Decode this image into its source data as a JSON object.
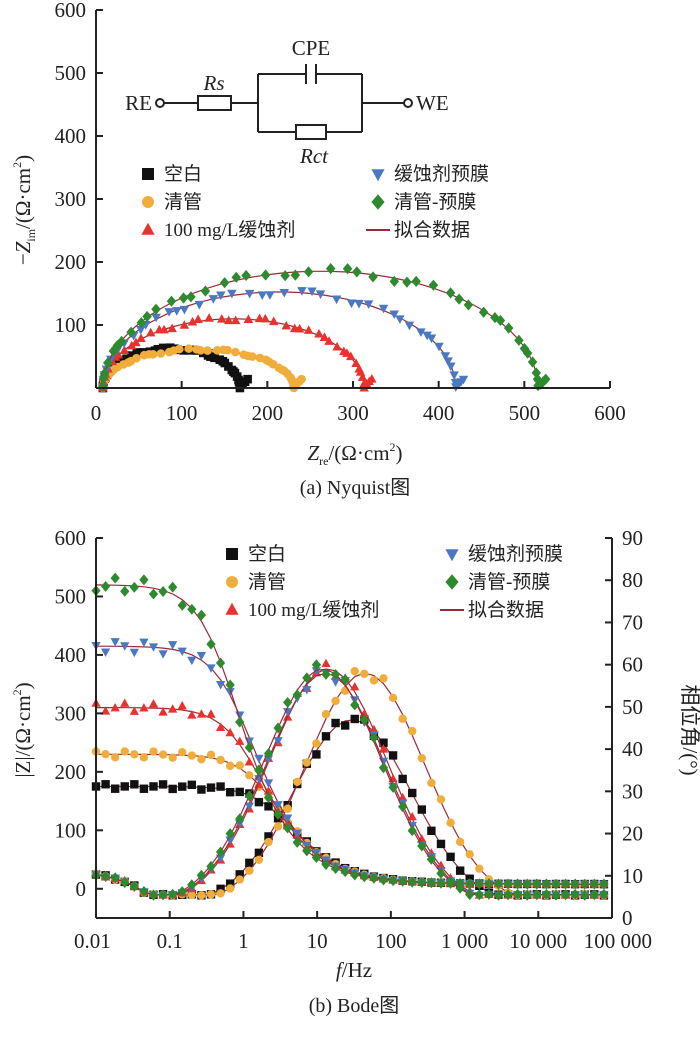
{
  "chart_data": [
    {
      "type": "scatter",
      "caption": "(a) Nyquist图",
      "xlabel": "Z_re/(Ω·cm²)",
      "ylabel": "−Z_im/(Ω·cm²)",
      "xlim": [
        0,
        600
      ],
      "ylim": [
        0,
        600
      ],
      "xticks": [
        "0",
        "100",
        "200",
        "300",
        "400",
        "500",
        "600"
      ],
      "yticks": [
        "100",
        "200",
        "300",
        "400",
        "500",
        "600"
      ],
      "circuit": {
        "RE": "RE",
        "WE": "WE",
        "Rs": "Rs",
        "CPE": "CPE",
        "Rct": "Rct"
      },
      "series": [
        {
          "name": "空白",
          "marker": "square",
          "color": "#111111",
          "Rs": 8,
          "R": 160,
          "depression": 0.78
        },
        {
          "name": "清管",
          "marker": "circle",
          "color": "#f0ad3c",
          "Rs": 8,
          "R": 223,
          "depression": 0.55
        },
        {
          "name": "100 mg/L缓蚀剂",
          "marker": "triangle-up",
          "color": "#e8322d",
          "Rs": 8,
          "R": 305,
          "depression": 0.72
        },
        {
          "name": "缓蚀剂预膜",
          "marker": "triangle-down",
          "color": "#4a78c2",
          "Rs": 8,
          "R": 412,
          "depression": 0.74
        },
        {
          "name": "清管-预膜",
          "marker": "diamond",
          "color": "#2e8a2e",
          "Rs": 8,
          "R": 508,
          "depression": 0.73
        }
      ],
      "fit_legend": "拟合数据",
      "fit_color": "#9b2a35"
    },
    {
      "type": "scatter",
      "caption": "(b) Bode图",
      "xlabel": "f/Hz",
      "ylabel_left": "|Z|/(Ω·cm²)",
      "ylabel_right": "相位角/(°)",
      "xscale": "log",
      "xlim": [
        0.01,
        100000
      ],
      "ylim_left": [
        -50,
        600
      ],
      "ylim_right": [
        0,
        90
      ],
      "xticks": [
        "0.01",
        "0.1",
        "1",
        "10",
        "100",
        "1 000",
        "10 000",
        "100 000"
      ],
      "yticks_left": [
        "0",
        "100",
        "200",
        "300",
        "400",
        "500",
        "600"
      ],
      "yticks_right": [
        "0",
        "10",
        "20",
        "30",
        "40",
        "50",
        "60",
        "70",
        "80",
        "90"
      ],
      "series": [
        {
          "name": "空白",
          "marker": "square",
          "color": "#111111",
          "Zlow": 175,
          "Zhigh": 8,
          "fc": 3,
          "phase_peak": 44,
          "peak_freq": 30
        },
        {
          "name": "清管",
          "marker": "circle",
          "color": "#f0ad3c",
          "Zlow": 230,
          "Zhigh": 8,
          "fc": 2,
          "phase_peak": 55,
          "peak_freq": 45
        },
        {
          "name": "100 mg/L缓蚀剂",
          "marker": "triangle-up",
          "color": "#e8322d",
          "Zlow": 310,
          "Zhigh": 8,
          "fc": 1.2,
          "phase_peak": 56,
          "peak_freq": 14
        },
        {
          "name": "缓蚀剂预膜",
          "marker": "triangle-down",
          "color": "#4a78c2",
          "Zlow": 415,
          "Zhigh": 8,
          "fc": 0.9,
          "phase_peak": 55,
          "peak_freq": 13
        },
        {
          "name": "清管-预膜",
          "marker": "diamond",
          "color": "#2e8a2e",
          "Zlow": 520,
          "Zhigh": 8,
          "fc": 0.55,
          "phase_peak": 56,
          "peak_freq": 12
        }
      ],
      "fit_legend": "拟合数据",
      "fit_color": "#9b2a35"
    }
  ]
}
